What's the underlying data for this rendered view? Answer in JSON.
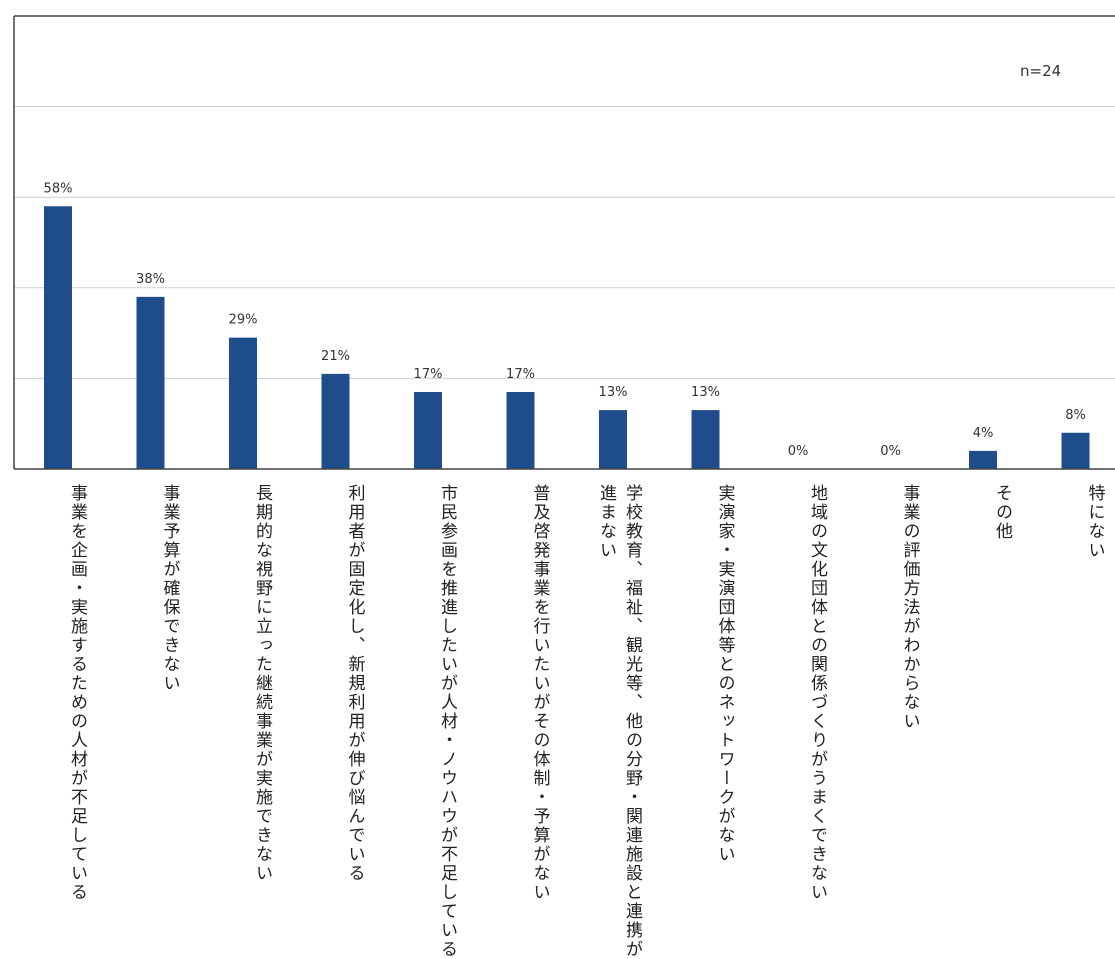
{
  "chart_data": {
    "type": "bar",
    "sample_size": "n=24",
    "categories": [
      "事業を企画・実施するための人材が不足している",
      "事業予算が確保できない",
      "長期的な視野に立った継続事業が実施できない",
      "利用者が固定化し、新規利用が伸び悩んでいる",
      "市民参画を推進したいが人材・ノウハウが不足している",
      "普及啓発事業を行いたいがその体制・予算がない",
      "学校教育、福祉、観光等、他の分野・関連施設と連携が進まない",
      "実演家・実演団体等とのネットワークがない",
      "地域の文化団体との関係づくりがうまくできない",
      "事業の評価方法がわからない",
      "その他",
      "特にない"
    ],
    "values": [
      58,
      38,
      29,
      21,
      17,
      17,
      13,
      13,
      0,
      0,
      4,
      8
    ],
    "value_labels": [
      "58%",
      "38%",
      "29%",
      "21%",
      "17%",
      "17%",
      "13%",
      "13%",
      "0%",
      "0%",
      "4%",
      "8%"
    ],
    "ylim": [
      0,
      100
    ],
    "grid": true,
    "colors": {
      "bar": "#1f4c8a",
      "grid": "#cfcfcf",
      "axis": "#444444"
    }
  }
}
